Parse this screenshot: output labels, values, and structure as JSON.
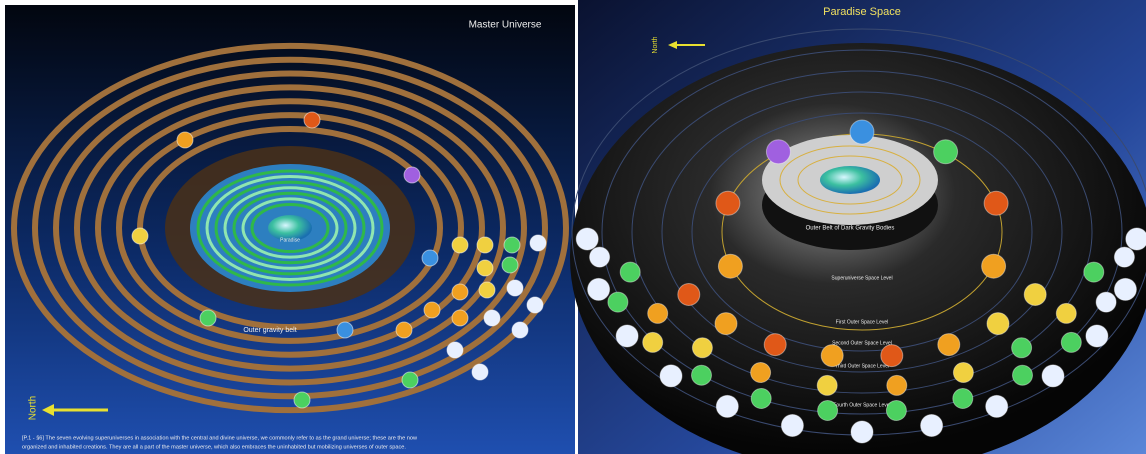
{
  "left": {
    "title": "Master Universe",
    "center_label": "Paradise",
    "belt_label": "Outer gravity belt",
    "north": "North",
    "caption_lines": [
      "[P.1 - §6] The seven evolving superuniverses in association with the central and divine universe, we commonly refer to as the grand universe; these are the now",
      "organized and inhabited creations. They are all a part of the master universe, which also embraces the uninhabited but mobilizing universes of outer space."
    ]
  },
  "right": {
    "title": "Paradise Space",
    "north": "North",
    "dark_belt": "Outer Belt of Dark Gravity Bodies",
    "levels": [
      "Superuniverse Space Level",
      "First Outer Space Level",
      "Second Outer Space Level",
      "Third Outer Space Level",
      "Fourth Outer Space Level"
    ]
  }
}
